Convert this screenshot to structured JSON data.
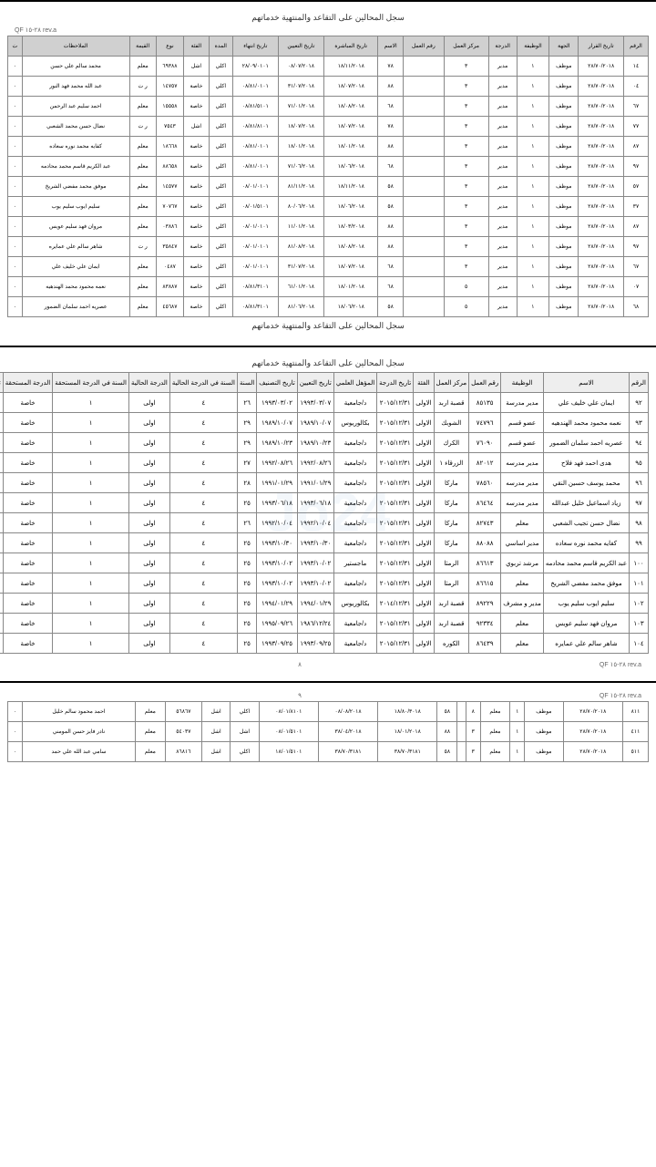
{
  "section1": {
    "title": "سجل المحالين على التقاعد والمنتهية خدماتهم",
    "meta_left": "QF ٢٨-١٥ rev.a",
    "page_num": "٨",
    "headers": [
      "الرقم",
      "تاريخ القرار",
      "الجهة",
      "الوظيفة",
      "الدرجة",
      "مركز العمل",
      "رقم العمل",
      "الاسم",
      "تاريخ المباشرة",
      "تاريخ التعيين",
      "تاريخ انتهاء",
      "المدة",
      "الفئة",
      "نوع",
      "القيمة",
      "الملاحظات",
      "ت"
    ],
    "rows": [
      [
        "١٤",
        "٢٨/٧٠/٢٠١٨",
        "موظف",
        "١",
        "مدير",
        "٣",
        "",
        "٧٨",
        "١٨/١١/٢٠١٨",
        "٠٨/٠٧/٢٠١٨",
        "٢٨/٠٩/٠١٠١",
        "اكلي",
        "اشل",
        "٦٩٣٨٨",
        "معلم",
        "محمد سالم علي حسن",
        "٠"
      ],
      [
        "٠٤",
        "٢٨/٧٠/٢٠١٨",
        "موظف",
        "١",
        "مدير",
        "٣",
        "",
        "٨٨",
        "١٨/٠٧/٢٠١٨",
        "٣١/٠٧/٢٠١٨",
        "٠٨/٨١/٠١٠١",
        "اكلي",
        "خاصة",
        "١٤٧٥٧",
        "ر ت",
        "عبد الله محمد فهد النور",
        "٠"
      ],
      [
        "٦٧",
        "٢٨/٧٠/٢٠١٨",
        "موظف",
        "١",
        "مدير",
        "٣",
        "",
        "٦٨",
        "١٨/٠٨/٢٠١٨",
        "٧١/٠١/٢٠١٨",
        "٠٨/٨١/٥١٠١",
        "اكلي",
        "خاصة",
        "١٥٥٥٨",
        "معلم",
        "احمد سليم عبد الرحمن",
        "٠"
      ],
      [
        "٧٧",
        "٢٨/٧٠/٢٠١٨",
        "موظف",
        "١",
        "مدير",
        "٣",
        "",
        "٧٨",
        "١٨/٠٧/٢٠١٨",
        "١٨/٠٧/٢٠١٨",
        "٠٨/٨١/٨١٠١",
        "اكلي",
        "اشل",
        "٧٥٤٣",
        "ر ت",
        "نضال حسن محمد الشعبي",
        "٠"
      ],
      [
        "٨٧",
        "٢٨/٧٠/٢٠١٨",
        "موظف",
        "١",
        "مدير",
        "٣",
        "",
        "٨٨",
        "١٨/٠١/٢٠١٨",
        "١٨/٠١/٢٠١٨",
        "٠٨/٨١/٠١٠١",
        "اكلي",
        "خاصة",
        "١٨٦٦٨",
        "معلم",
        "كفايه محمد نوره سعاده",
        "٠"
      ],
      [
        "٩٧",
        "٢٨/٧٠/٢٠١٨",
        "موظف",
        "١",
        "مدير",
        "٣",
        "",
        "٦٨",
        "١٨/٠٦/٢٠١٨",
        "٧١/٠٦/٢٠١٨",
        "٠٨/٨١/٠١٠١",
        "اكلي",
        "خاصة",
        "٨٨٦٥٨",
        "معلم",
        "عبد الكريم قاسم محمد محادمه",
        "٠"
      ],
      [
        "٥٧",
        "٢٨/٧٠/٢٠١٨",
        "موظف",
        "١",
        "مدير",
        "٣",
        "",
        "٥٨",
        "١٨/١١/٢٠١٨",
        "٨١/١١/٢٠١٨",
        "٠٨/٠١/٠١٠١",
        "اكلي",
        "خاصة",
        "١٤٥٧٧",
        "معلم",
        "موفق محمد مفضي الشريخ",
        "٠"
      ],
      [
        "٣٧",
        "٢٨/٧٠/٢٠١٨",
        "موظف",
        "١",
        "مدير",
        "٣",
        "",
        "٥٨",
        "١٨/٠٦/٢٠١٨",
        "٨٠/٠٦/٢٠١٨",
        "٠٨/٠١/٥١٠١",
        "اكلي",
        "خاصة",
        "٧٠٧٦٧",
        "معلم",
        "سليم ايوب سليم يوب",
        "٠"
      ],
      [
        "٨٧",
        "٢٨/٧٠/٢٠١٨",
        "موظف",
        "١",
        "مدير",
        "٣",
        "",
        "٨٨",
        "١٨/٠٣/٢٠١٨",
        "١١/٠١/٢٠١٨",
        "٠٨/٠١/٠١٠١",
        "اكلي",
        "خاصة",
        "٠٣٨٨٦",
        "معلم",
        "مروان فهد سليم عويس",
        "٠"
      ],
      [
        "٩٧",
        "٢٨/٧٠/٢٠١٨",
        "موظف",
        "١",
        "مدير",
        "٣",
        "",
        "٨٨",
        "١٨/٠٨/٢٠١٨",
        "٨١/٠٨/٢٠١٨",
        "٠٨/٠١/٠١٠١",
        "اكلي",
        "خاصة",
        "٣٥٨٤٧",
        "ر ت",
        "شاهر سالم علي عمايره",
        "٠"
      ],
      [
        "٦٧",
        "٢٨/٧٠/٢٠١٨",
        "موظف",
        "١",
        "مدير",
        "٣",
        "",
        "٦٨",
        "١٨/٠٧/٢٠١٨",
        "٣١/٠٧/٢٠١٨",
        "٠٨/٠١/٠١٠١",
        "اكلي",
        "خاصة",
        "٠٤٨٧",
        "معلم",
        "ايمان علي خليف علي",
        "٠"
      ],
      [
        "٠٧",
        "٢٨/٧٠/٢٠١٨",
        "موظف",
        "١",
        "مدير",
        "٥",
        "",
        "٦٨",
        "١٨/٠١/٢٠١٨",
        "٦١/٠١/٢٠١٨",
        "٠٨/٨١/٣١٠١",
        "اكلي",
        "خاصة",
        "٨٣٨٨٧",
        "معلم",
        "نعمه محمود محمد الهندهيه",
        "٠"
      ],
      [
        "٦٨",
        "٢٨/٧٠/٢٠١٨",
        "موظف",
        "١",
        "مدير",
        "٥",
        "",
        "٥٨",
        "١٨/٠٦/٢٠١٨",
        "٨١/٠٦/٢٠١٨",
        "٠٨/٨١/٣١٠١",
        "اكلي",
        "خاصة",
        "٤٥٦٨٧",
        "معلم",
        "عصريه احمد سلمان الضمور",
        "٠"
      ]
    ]
  },
  "section2": {
    "title": "سجل المحالين على التقاعد والمنتهية خدماتهم",
    "meta_left": "QF ٢٨-١٥ rev.a",
    "page_num": "٨",
    "watermark": "Jo24",
    "headers": [
      "الرقم",
      "الاسم",
      "الوظيفة",
      "رقم العمل",
      "مركز العمل",
      "الفئة",
      "تاريخ الدرجة",
      "المؤهل العلمي",
      "تاريخ التعيين",
      "تاريخ التصنيف",
      "السنة",
      "السنة في الدرجة الحالية",
      "الدرجة الحالية",
      "السنة في الدرجة المستحقة",
      "الدرجة المستحقة",
      "تاريخ الدرجة المستحقة",
      "تار"
    ],
    "rows": [
      [
        "٩٢",
        "ايمان علي خليف علي",
        "مدير مدرسة",
        "٨٥١٣٥",
        "قصبة اربد",
        "الاولى",
        "٢٠١٥/١٢/٣١",
        "د/جامعية",
        "١٩٩٣/٠٣/٠٧",
        "١٩٩٣/٠٣/٠٢",
        "٢٦",
        "٤",
        "اولى",
        "١",
        "خاصة",
        "٢٠١٩/٠٨/٢٩",
        "/٣٠"
      ],
      [
        "٩٣",
        "نعمه محمود محمد الهندهيه",
        "عضو قسم",
        "٧٤٧٩٦",
        "الشوبك",
        "الاولى",
        "٢٠١٥/١٢/٣١",
        "بكالوريوس",
        "١٩٨٩/١٠/٠٧",
        "١٩٨٩/١٠/٠٧",
        "٢٩",
        "٤",
        "اولى",
        "١",
        "خاصة",
        "٢٠١٩/٠٨/٢٩",
        "/٣٠"
      ],
      [
        "٩٤",
        "عصريه احمد سلمان الضمور",
        "عضو قسم",
        "٧٦٠٩٠",
        "الكرك",
        "الاولى",
        "٢٠١٥/١٢/٣١",
        "د/جامعية",
        "١٩٨٩/١٠/٢٣",
        "١٩٨٩/١٠/٢٣",
        "٢٩",
        "٤",
        "اولى",
        "١",
        "خاصة",
        "٢٠١٩/٠٨/٢٩",
        "/٣٠"
      ],
      [
        "٩٥",
        "هدى احمد فهد فلاح",
        "مدير مدرسه",
        "٨٢٠١٢",
        "الزرقاء ١",
        "الاولى",
        "٢٠١٥/١٢/٣١",
        "د/جامعية",
        "١٩٩٢/٠٨/٢٦",
        "١٩٩٢/٠٨/٢٦",
        "٢٧",
        "٤",
        "اولى",
        "١",
        "خاصة",
        "٢٠١٩/٠٨/٢٩",
        "/٣٠"
      ],
      [
        "٩٦",
        "محمد يوسف حسين النقي",
        "مدير مدرسه",
        "٧٨٥٦٠",
        "ماركا",
        "الاولى",
        "٢٠١٥/١٢/٣١",
        "د/جامعية",
        "١٩٩١/٠١/٢٩",
        "١٩٩١/٠١/٢٩",
        "٢٨",
        "٤",
        "اولى",
        "١",
        "خاصة",
        "٢٠١٩/٠٨/٢٩",
        "/٣٠"
      ],
      [
        "٩٧",
        "زياد اسماعيل خليل عبدالله",
        "مدير مدرسه",
        "٨٦٤٦٤",
        "ماركا",
        "الاولى",
        "٢٠١٥/١٢/٣١",
        "د/جامعية",
        "١٩٩٣/٠٦/١٨",
        "١٩٩٣/٠٦/١٨",
        "٢٥",
        "٤",
        "اولى",
        "١",
        "خاصة",
        "٢٠١٩/٠٨/٢٩",
        "/٣٠"
      ],
      [
        "٩٨",
        "نضال حسن تجيب الشعبي",
        "معلم",
        "٨٢٧٤٣",
        "ماركا",
        "الاولى",
        "٢٠١٥/١٢/٣١",
        "د/جامعية",
        "١٩٩٢/١٠/٠٤",
        "١٩٩٢/١٠/٠٤",
        "٢٦",
        "٤",
        "اولى",
        "١",
        "خاصة",
        "٢٠١٩/٠٨/٢٩",
        "/٣٠"
      ],
      [
        "٩٩",
        "كفايه محمد نوره سعاده",
        "مدير اساسي",
        "٨٨٠٨٨",
        "ماركا",
        "الاولى",
        "٢٠١٥/١٢/٣١",
        "د/جامعية",
        "١٩٩٣/١٠/٣٠",
        "١٩٩٣/١٠/٣٠",
        "٢٥",
        "٤",
        "اولى",
        "١",
        "خاصة",
        "٢٠١٩/٠٨/٢٩",
        "/٣٠"
      ],
      [
        "١٠٠",
        "عبد الكريم قاسم محمد محادمه",
        "مرشد تربوي",
        "٨٦٦١٣",
        "الرمثا",
        "الاولى",
        "٢٠١٥/١٢/٣١",
        "ماجستير",
        "١٩٩٣/١٠/٠٢",
        "١٩٩٣/١٠/٠٢",
        "٢٥",
        "٤",
        "اولى",
        "١",
        "خاصة",
        "٢٠١٩/٠٨/٢٩",
        "/٣٠"
      ],
      [
        "١٠١",
        "موفق محمد مفضي الشريخ",
        "معلم",
        "٨٦٦١٥",
        "الرمثا",
        "الاولى",
        "٢٠١٥/١٢/٣١",
        "د/جامعية",
        "١٩٩٣/١٠/٠٢",
        "١٩٩٣/١٠/٠٢",
        "٢٥",
        "٤",
        "اولى",
        "١",
        "خاصة",
        "٢٠١٩/٠٨/٢٩",
        "/٣٠"
      ],
      [
        "١٠٢",
        "سليم ايوب سليم يوب",
        "مدير و مشرف",
        "٨٩٢٢٩",
        "قصبة اربد",
        "الاولى",
        "٢٠١٤/١٢/٣١",
        "بكالوريوس",
        "١٩٩٤/٠١/٢٩",
        "١٩٩٤/٠١/٢٩",
        "٢٥",
        "٤",
        "اولى",
        "١",
        "خاصة",
        "٢٠١٩/٠٨/٢٩",
        "/٣٠"
      ],
      [
        "١٠٣",
        "مروان فهد سليم عويس",
        "معلم",
        "٩٢٣٣٤",
        "قصبة اربد",
        "الاولى",
        "٢٠١٥/١٢/٣١",
        "د/جامعية",
        "١٩٨٦/١٢/٢٤",
        "١٩٩٥/٠٩/٢٦",
        "٢٥",
        "٤",
        "اولى",
        "١",
        "خاصة",
        "٢٠١٩/٠٨/٢٩",
        "/٣٠"
      ],
      [
        "١٠٤",
        "شاهر سالم علي عمايره",
        "معلم",
        "٨٦٤٣٩",
        "الكوره",
        "الاولى",
        "٢٠١٥/١٢/٣١",
        "د/جامعية",
        "١٩٩٣/٠٩/٢٥",
        "١٩٩٣/٠٩/٢٥",
        "٢٥",
        "٤",
        "اولى",
        "١",
        "خاصة",
        "٢٠١٩/٠٨/٢٩",
        "/٣٠"
      ]
    ]
  },
  "section3": {
    "meta_left": "QF ٢٨-١٥ rev.a",
    "page_num": "٩",
    "rows": [
      [
        "٨١١",
        "٢٨/٧٠/٢٠١٨",
        "موظف",
        "١",
        "معلم",
        "٨",
        "",
        "٥٨",
        "١٨/٨٠/٣٠١٨",
        "٠٨/٠٨/٢٠١٨",
        "٠٨/٠١/٨١٠١",
        "اكلي",
        "اشل",
        "٥٦٨٦٧",
        "معلم",
        "احمد محمود سالم خليل",
        "٠"
      ],
      [
        "٤١١",
        "٢٨/٧٠/٢٠١٨",
        "موظف",
        "١",
        "معلم",
        "٣",
        "",
        "٨٨",
        "١٨/٠١/٢٠١٨",
        "٣٨/٠٤/٢٠١٨",
        "٠٨/٠١/٥١٠١",
        "اشل",
        "اشل",
        "٥٤٠٣٧",
        "معلم",
        "نادر فايز حسن المومني",
        "٠"
      ],
      [
        "٥١١",
        "٢٨/٧٠/٢٠١٨",
        "موظف",
        "١",
        "معلم",
        "٣",
        "",
        "٥٨",
        "٣٨/٧٠/٣١٨١",
        "٣٨/٧٠/٣١٨١",
        "١٨/٠١/٥١٠١",
        "اكلي",
        "اشل",
        "٨٦٨١٦",
        "معلم",
        "سامي عبد الله علي حمد",
        "٠"
      ]
    ]
  }
}
